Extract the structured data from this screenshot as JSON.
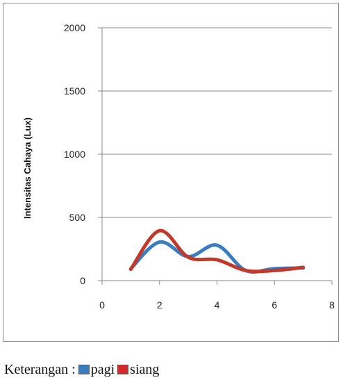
{
  "chart_data": {
    "type": "line",
    "title": "",
    "xlabel": "",
    "ylabel": "Intensitas Cahaya  (Lux)",
    "xlim": [
      0,
      8
    ],
    "ylim": [
      0,
      2000
    ],
    "x_ticks": [
      0,
      2,
      4,
      6,
      8
    ],
    "y_ticks": [
      0,
      500,
      1000,
      1500,
      2000
    ],
    "grid": "horizontal",
    "series": [
      {
        "name": "pagi",
        "color": "#3a7cc0",
        "x": [
          1,
          2,
          3,
          4,
          5,
          6,
          7
        ],
        "y": [
          95,
          305,
          190,
          280,
          80,
          95,
          100
        ]
      },
      {
        "name": "siang",
        "color": "#c0392b",
        "x": [
          1,
          2,
          3,
          4,
          5,
          6,
          7
        ],
        "y": [
          90,
          395,
          185,
          165,
          80,
          80,
          105
        ]
      }
    ],
    "legend": {
      "prefix": "Keterangan :",
      "position": "bottom-left",
      "items": [
        {
          "label": "pagi",
          "color": "#3a7cc0"
        },
        {
          "label": "siang",
          "color": "#d42a2a"
        }
      ]
    }
  }
}
